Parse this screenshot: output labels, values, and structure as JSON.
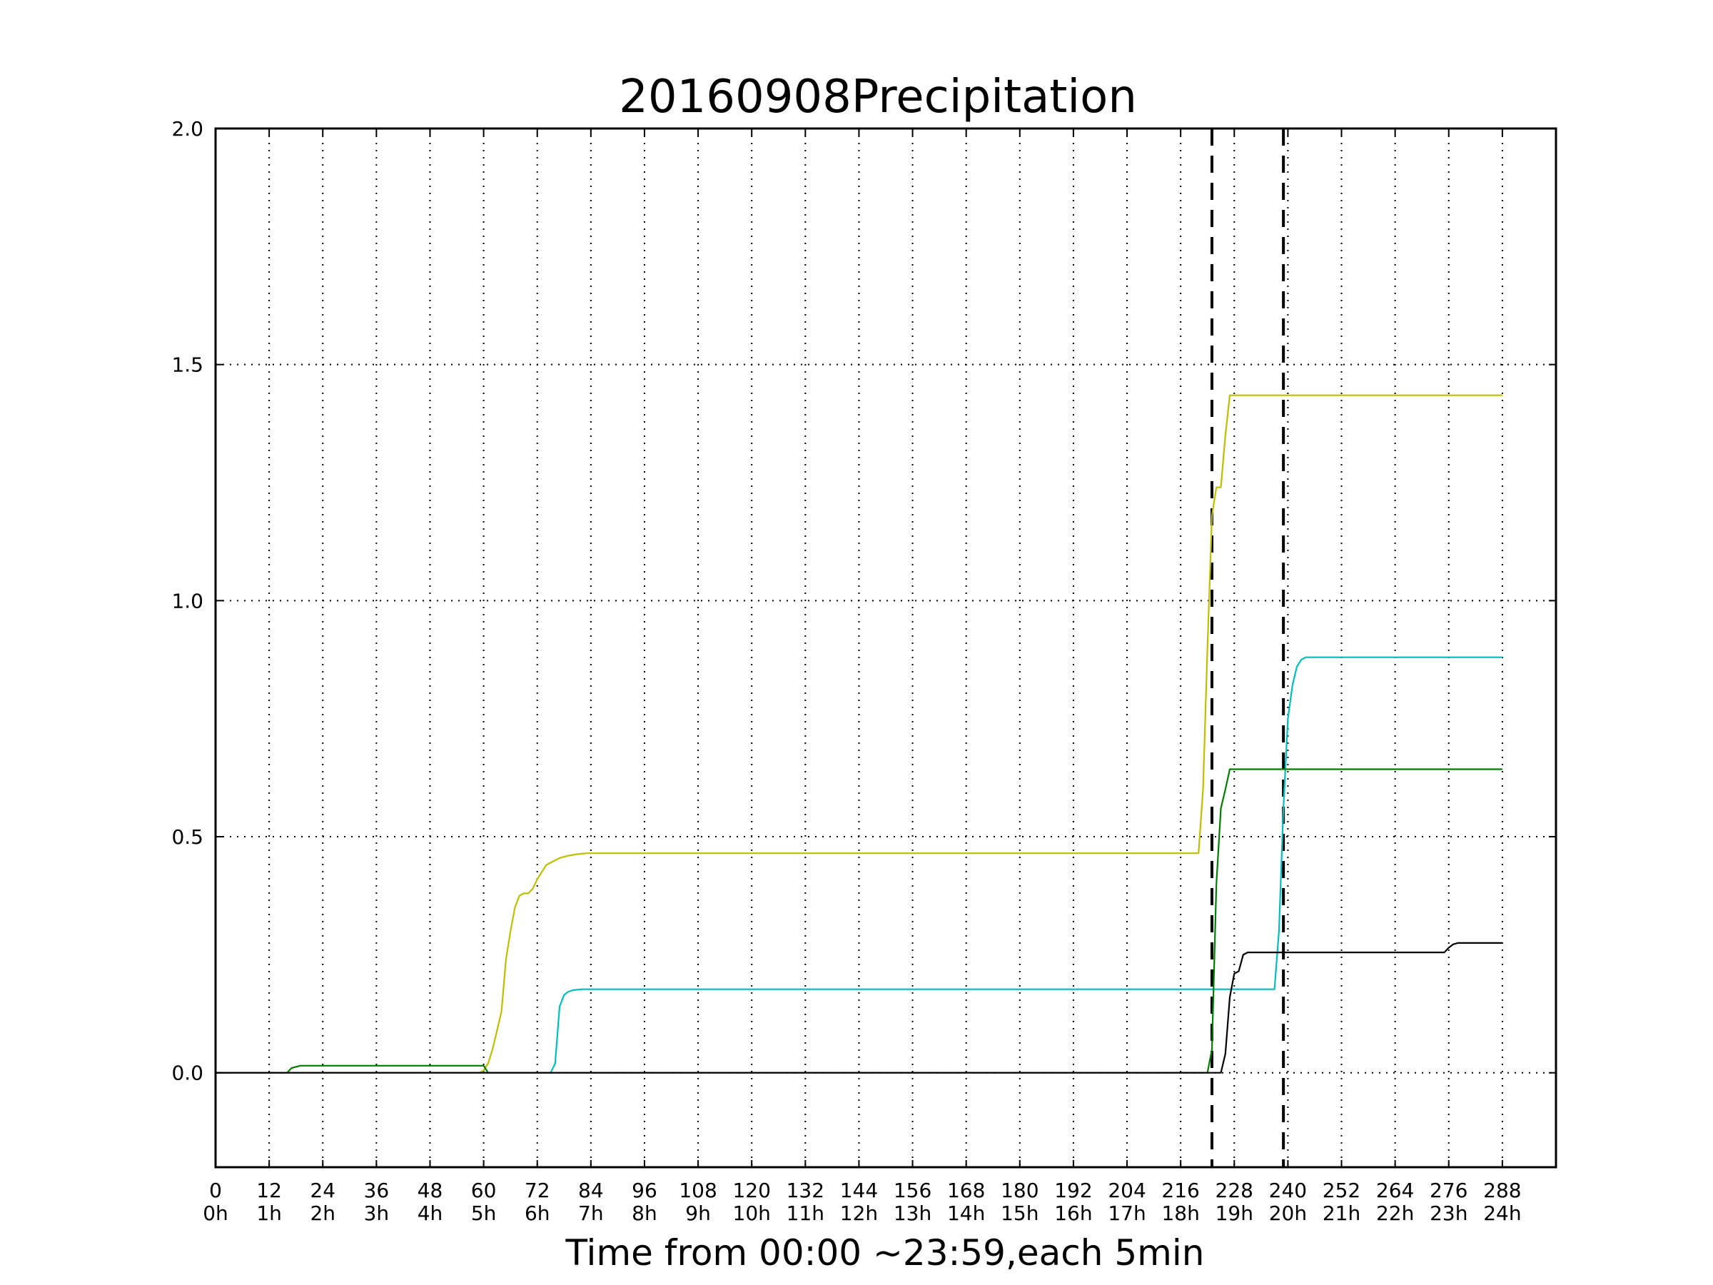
{
  "chart_data": {
    "type": "line",
    "title": "20160908Precipitation",
    "xlabel": "Time from 00:00 ~23:59,each 5min",
    "ylabel": "",
    "xlim": [
      0,
      300
    ],
    "ylim": [
      -0.2,
      2.0
    ],
    "grid": true,
    "xticks": [
      {
        "value": 0,
        "label": "0",
        "sublabel": "0h"
      },
      {
        "value": 12,
        "label": "12",
        "sublabel": "1h"
      },
      {
        "value": 24,
        "label": "24",
        "sublabel": "2h"
      },
      {
        "value": 36,
        "label": "36",
        "sublabel": "3h"
      },
      {
        "value": 48,
        "label": "48",
        "sublabel": "4h"
      },
      {
        "value": 60,
        "label": "60",
        "sublabel": "5h"
      },
      {
        "value": 72,
        "label": "72",
        "sublabel": "6h"
      },
      {
        "value": 84,
        "label": "84",
        "sublabel": "7h"
      },
      {
        "value": 96,
        "label": "96",
        "sublabel": "8h"
      },
      {
        "value": 108,
        "label": "108",
        "sublabel": "9h"
      },
      {
        "value": 120,
        "label": "120",
        "sublabel": "10h"
      },
      {
        "value": 132,
        "label": "132",
        "sublabel": "11h"
      },
      {
        "value": 144,
        "label": "144",
        "sublabel": "12h"
      },
      {
        "value": 156,
        "label": "156",
        "sublabel": "13h"
      },
      {
        "value": 168,
        "label": "168",
        "sublabel": "14h"
      },
      {
        "value": 180,
        "label": "180",
        "sublabel": "15h"
      },
      {
        "value": 192,
        "label": "192",
        "sublabel": "16h"
      },
      {
        "value": 204,
        "label": "204",
        "sublabel": "17h"
      },
      {
        "value": 216,
        "label": "216",
        "sublabel": "18h"
      },
      {
        "value": 228,
        "label": "228",
        "sublabel": "19h"
      },
      {
        "value": 240,
        "label": "240",
        "sublabel": "20h"
      },
      {
        "value": 252,
        "label": "252",
        "sublabel": "21h"
      },
      {
        "value": 264,
        "label": "264",
        "sublabel": "22h"
      },
      {
        "value": 276,
        "label": "276",
        "sublabel": "23h"
      },
      {
        "value": 288,
        "label": "288",
        "sublabel": "24h"
      }
    ],
    "yticks": [
      {
        "value": 0.0,
        "label": "0.0"
      },
      {
        "value": 0.5,
        "label": "0.5"
      },
      {
        "value": 1.0,
        "label": "1.0"
      },
      {
        "value": 1.5,
        "label": "1.5"
      },
      {
        "value": 2.0,
        "label": "2.0"
      }
    ],
    "vlines": [
      223,
      239
    ],
    "series": [
      {
        "color": "#bfbf00",
        "points": [
          [
            0,
            0
          ],
          [
            59,
            0
          ],
          [
            60,
            0.005
          ],
          [
            61,
            0.02
          ],
          [
            62,
            0.05
          ],
          [
            63,
            0.09
          ],
          [
            64,
            0.13
          ],
          [
            65,
            0.24
          ],
          [
            66,
            0.3
          ],
          [
            67,
            0.35
          ],
          [
            68,
            0.375
          ],
          [
            69,
            0.38
          ],
          [
            70,
            0.38
          ],
          [
            71,
            0.39
          ],
          [
            72,
            0.41
          ],
          [
            73,
            0.425
          ],
          [
            74,
            0.44
          ],
          [
            75,
            0.445
          ],
          [
            77,
            0.455
          ],
          [
            79,
            0.46
          ],
          [
            81,
            0.463
          ],
          [
            83,
            0.465
          ],
          [
            220,
            0.465
          ],
          [
            221,
            0.6
          ],
          [
            222,
            0.9
          ],
          [
            223,
            1.18
          ],
          [
            224,
            1.24
          ],
          [
            225,
            1.24
          ],
          [
            226,
            1.35
          ],
          [
            227,
            1.435
          ],
          [
            288,
            1.435
          ]
        ]
      },
      {
        "color": "#00bfbf",
        "points": [
          [
            0,
            0
          ],
          [
            75,
            0
          ],
          [
            76,
            0.02
          ],
          [
            77,
            0.14
          ],
          [
            78,
            0.165
          ],
          [
            79,
            0.172
          ],
          [
            80,
            0.175
          ],
          [
            82,
            0.177
          ],
          [
            83,
            0.177
          ],
          [
            237,
            0.177
          ],
          [
            238,
            0.3
          ],
          [
            239,
            0.56
          ],
          [
            240,
            0.75
          ],
          [
            241,
            0.82
          ],
          [
            242,
            0.86
          ],
          [
            243,
            0.875
          ],
          [
            244,
            0.88
          ],
          [
            288,
            0.88
          ]
        ]
      },
      {
        "color": "#007f00",
        "points": [
          [
            0,
            0
          ],
          [
            16,
            0
          ],
          [
            17,
            0.01
          ],
          [
            19,
            0.015
          ],
          [
            60,
            0.015
          ],
          [
            61,
            0
          ],
          [
            222,
            0
          ],
          [
            223,
            0.05
          ],
          [
            224,
            0.4
          ],
          [
            225,
            0.56
          ],
          [
            226,
            0.6
          ],
          [
            227,
            0.643
          ],
          [
            288,
            0.643
          ]
        ]
      },
      {
        "color": "#000000",
        "points": [
          [
            0,
            0
          ],
          [
            225,
            0
          ],
          [
            226,
            0.04
          ],
          [
            227,
            0.16
          ],
          [
            228,
            0.21
          ],
          [
            229,
            0.215
          ],
          [
            230,
            0.25
          ],
          [
            231,
            0.255
          ],
          [
            275,
            0.255
          ],
          [
            276,
            0.265
          ],
          [
            277,
            0.272
          ],
          [
            278,
            0.275
          ],
          [
            288,
            0.275
          ]
        ]
      }
    ]
  }
}
